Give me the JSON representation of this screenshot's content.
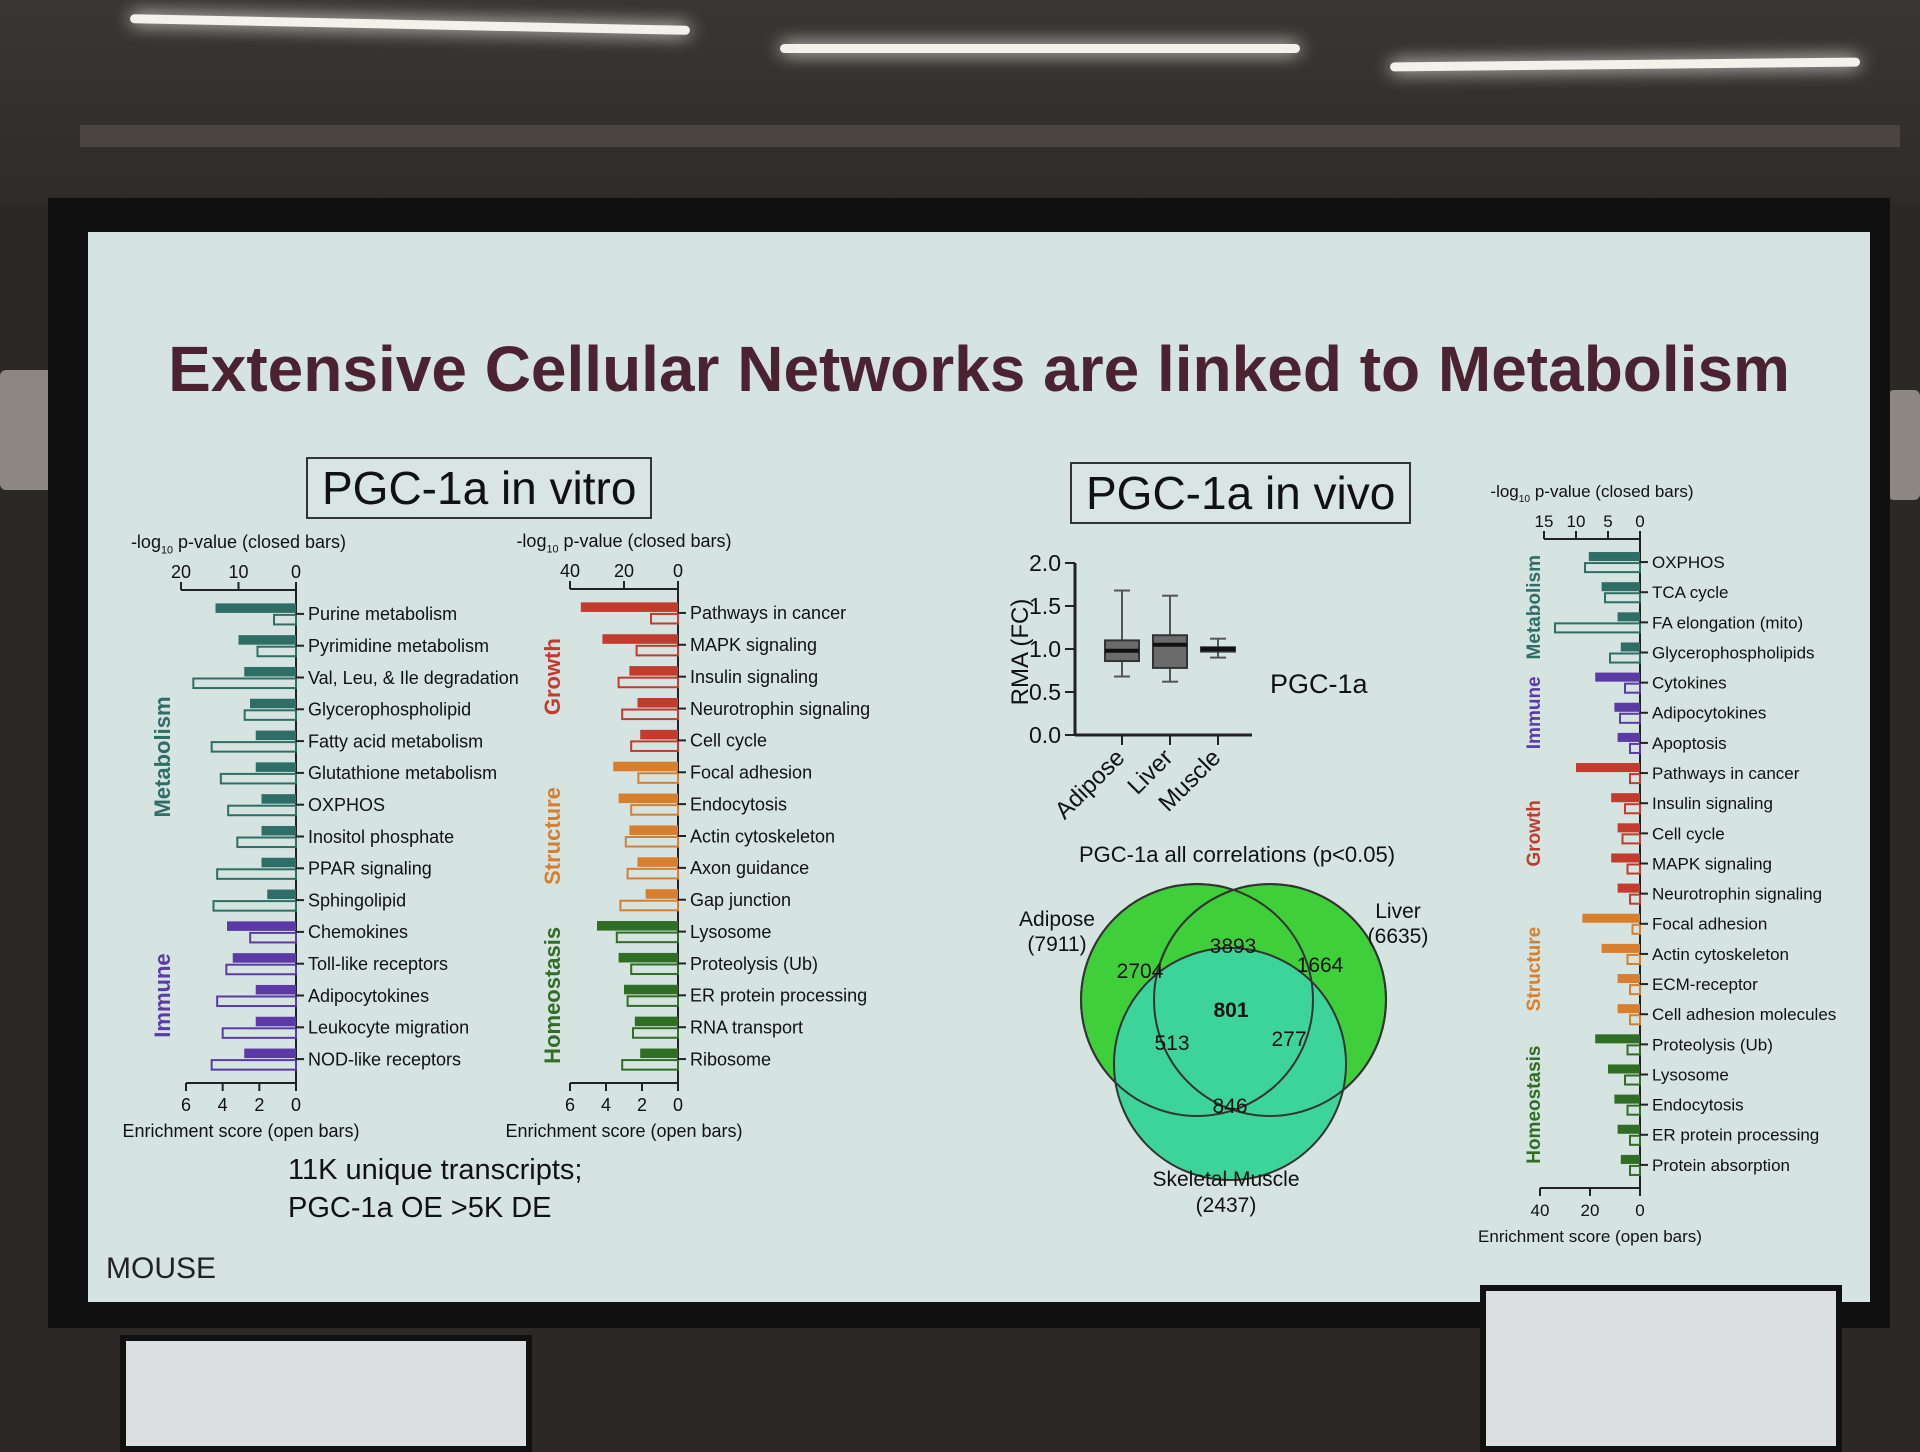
{
  "slide": {
    "title": "Extensive Cellular Networks are linked to Metabolism",
    "left_box": "PGC-1a in vitro",
    "right_box": "PGC-1a in vivo",
    "note_line1": "11K unique transcripts;",
    "note_line2": "PGC-1a OE >5K DE",
    "corner_label": "MOUSE"
  },
  "axis_texts": {
    "pval_prefix": "-log",
    "pval_sub": "10",
    "pval_suffix": " p-value (closed bars)",
    "enrich": "Enrichment score (open bars)"
  },
  "panel_a": {
    "top_ticks": [
      "20",
      "10",
      "0"
    ],
    "bottom_ticks": [
      "6",
      "4",
      "2",
      "0"
    ],
    "groups": [
      {
        "label": "Metabolism",
        "color": "#2e6e66"
      },
      {
        "label": "Immune",
        "color": "#5b3aa6"
      }
    ],
    "rows": [
      {
        "label": "Purine metabolism",
        "p": 14,
        "e": 1.2,
        "group": 0
      },
      {
        "label": "Pyrimidine metabolism",
        "p": 10,
        "e": 2.1,
        "group": 0
      },
      {
        "label": "Val, Leu, & Ile degradation",
        "p": 9,
        "e": 5.6,
        "group": 0
      },
      {
        "label": "Glycerophospholipid",
        "p": 8,
        "e": 2.8,
        "group": 0
      },
      {
        "label": "Fatty acid metabolism",
        "p": 7,
        "e": 4.6,
        "group": 0
      },
      {
        "label": "Glutathione metabolism",
        "p": 7,
        "e": 4.1,
        "group": 0
      },
      {
        "label": "OXPHOS",
        "p": 6,
        "e": 3.7,
        "group": 0
      },
      {
        "label": "Inositol phosphate",
        "p": 6,
        "e": 3.2,
        "group": 0
      },
      {
        "label": "PPAR signaling",
        "p": 6,
        "e": 4.3,
        "group": 0
      },
      {
        "label": "Sphingolipid",
        "p": 5,
        "e": 4.5,
        "group": 0
      },
      {
        "label": "Chemokines",
        "p": 12,
        "e": 2.5,
        "group": 1
      },
      {
        "label": "Toll-like receptors",
        "p": 11,
        "e": 3.8,
        "group": 1
      },
      {
        "label": "Adipocytokines",
        "p": 7,
        "e": 4.3,
        "group": 1
      },
      {
        "label": "Leukocyte migration",
        "p": 7,
        "e": 4.0,
        "group": 1
      },
      {
        "label": "NOD-like receptors",
        "p": 9,
        "e": 4.6,
        "group": 1
      }
    ]
  },
  "panel_b": {
    "top_ticks": [
      "40",
      "20",
      "0"
    ],
    "bottom_ticks": [
      "6",
      "4",
      "2",
      "0"
    ],
    "groups": [
      {
        "label": "Growth",
        "color": "#c33a2e"
      },
      {
        "label": "Structure",
        "color": "#d87f2e"
      },
      {
        "label": "Homeostasis",
        "color": "#2f6e24"
      }
    ],
    "rows": [
      {
        "label": "Pathways in cancer",
        "p": 36,
        "e": 1.5,
        "group": 0
      },
      {
        "label": "MAPK signaling",
        "p": 28,
        "e": 2.3,
        "group": 0
      },
      {
        "label": "Insulin signaling",
        "p": 18,
        "e": 3.3,
        "group": 0
      },
      {
        "label": "Neurotrophin signaling",
        "p": 15,
        "e": 3.1,
        "group": 0
      },
      {
        "label": "Cell cycle",
        "p": 14,
        "e": 2.6,
        "group": 0
      },
      {
        "label": "Focal adhesion",
        "p": 24,
        "e": 2.2,
        "group": 1
      },
      {
        "label": "Endocytosis",
        "p": 22,
        "e": 2.6,
        "group": 1
      },
      {
        "label": "Actin cytoskeleton",
        "p": 18,
        "e": 2.9,
        "group": 1
      },
      {
        "label": "Axon guidance",
        "p": 15,
        "e": 2.8,
        "group": 1
      },
      {
        "label": "Gap junction",
        "p": 12,
        "e": 3.2,
        "group": 1
      },
      {
        "label": "Lysosome",
        "p": 30,
        "e": 3.4,
        "group": 2
      },
      {
        "label": "Proteolysis (Ub)",
        "p": 22,
        "e": 2.6,
        "group": 2
      },
      {
        "label": "ER protein processing",
        "p": 20,
        "e": 2.8,
        "group": 2
      },
      {
        "label": "RNA transport",
        "p": 16,
        "e": 2.5,
        "group": 2
      },
      {
        "label": "Ribosome",
        "p": 14,
        "e": 3.1,
        "group": 2
      }
    ]
  },
  "panel_c": {
    "top_ticks": [
      "15",
      "10",
      "5",
      "0"
    ],
    "bottom_ticks": [
      "40",
      "20",
      "0"
    ],
    "groups": [
      {
        "label": "Metabolism",
        "color": "#2e6e66"
      },
      {
        "label": "Immune",
        "color": "#5b3aa6"
      },
      {
        "label": "Growth",
        "color": "#c33a2e"
      },
      {
        "label": "Structure",
        "color": "#d87f2e"
      },
      {
        "label": "Homeostasis",
        "color": "#2f6e24"
      }
    ],
    "rows": [
      {
        "label": "OXPHOS",
        "p": 8,
        "e": 22,
        "group": 0
      },
      {
        "label": "TCA cycle",
        "p": 6,
        "e": 14,
        "group": 0
      },
      {
        "label": "FA elongation (mito)",
        "p": 3.5,
        "e": 34,
        "group": 0
      },
      {
        "label": "Glycerophospholipids",
        "p": 3,
        "e": 12,
        "group": 0
      },
      {
        "label": "Cytokines",
        "p": 7,
        "e": 6,
        "group": 1
      },
      {
        "label": "Adipocytokines",
        "p": 4,
        "e": 8,
        "group": 1
      },
      {
        "label": "Apoptosis",
        "p": 3.5,
        "e": 4,
        "group": 1
      },
      {
        "label": "Pathways in cancer",
        "p": 10,
        "e": 4,
        "group": 2
      },
      {
        "label": "Insulin signaling",
        "p": 4.5,
        "e": 6,
        "group": 2
      },
      {
        "label": "Cell cycle",
        "p": 3.5,
        "e": 7,
        "group": 2
      },
      {
        "label": "MAPK signaling",
        "p": 4.5,
        "e": 5,
        "group": 2
      },
      {
        "label": "Neurotrophin signaling",
        "p": 3.5,
        "e": 4,
        "group": 2
      },
      {
        "label": "Focal adhesion",
        "p": 9,
        "e": 3,
        "group": 3
      },
      {
        "label": "Actin cytoskeleton",
        "p": 6,
        "e": 5,
        "group": 3
      },
      {
        "label": "ECM-receptor",
        "p": 3.5,
        "e": 4,
        "group": 3
      },
      {
        "label": "Cell adhesion molecules",
        "p": 3.5,
        "e": 4,
        "group": 3
      },
      {
        "label": "Proteolysis (Ub)",
        "p": 7,
        "e": 5,
        "group": 4
      },
      {
        "label": "Lysosome",
        "p": 5,
        "e": 6,
        "group": 4
      },
      {
        "label": "Endocytosis",
        "p": 4,
        "e": 5,
        "group": 4
      },
      {
        "label": "ER protein processing",
        "p": 3.5,
        "e": 4,
        "group": 4
      },
      {
        "label": "Protein absorption",
        "p": 3,
        "e": 4,
        "group": 4
      }
    ]
  },
  "boxplot": {
    "ylabel": "RMA (FC)",
    "y_ticks": [
      "2.0",
      "1.5",
      "1.0",
      "0.5",
      "0.0"
    ],
    "gene_label": "PGC-1a",
    "categories": [
      "Adipose",
      "Liver",
      "Muscle"
    ],
    "boxes": [
      {
        "min": 0.68,
        "q1": 0.86,
        "median": 0.98,
        "q3": 1.1,
        "max": 1.68
      },
      {
        "min": 0.62,
        "q1": 0.78,
        "median": 1.05,
        "q3": 1.16,
        "max": 1.62
      },
      {
        "min": 0.9,
        "q1": 0.97,
        "median": 1.0,
        "q3": 1.02,
        "max": 1.12
      }
    ]
  },
  "venn": {
    "title": "PGC-1a all correlations (p<0.05)",
    "sets": [
      {
        "name": "Adipose",
        "total": "(7911)"
      },
      {
        "name": "Liver",
        "total": "(6635)"
      },
      {
        "name": "Skeletal Muscle",
        "total": "(2437)"
      }
    ],
    "regions": {
      "adipose_only": "2704",
      "liver_only": "1664",
      "muscle_only": "846",
      "adipose_liver": "3893",
      "adipose_muscle": "513",
      "liver_muscle": "277",
      "all": "801"
    },
    "colors": {
      "set": "#3fcf3a",
      "muscle": "#3dd49a",
      "overlap": "#22b51d",
      "center": "#12a010"
    }
  }
}
